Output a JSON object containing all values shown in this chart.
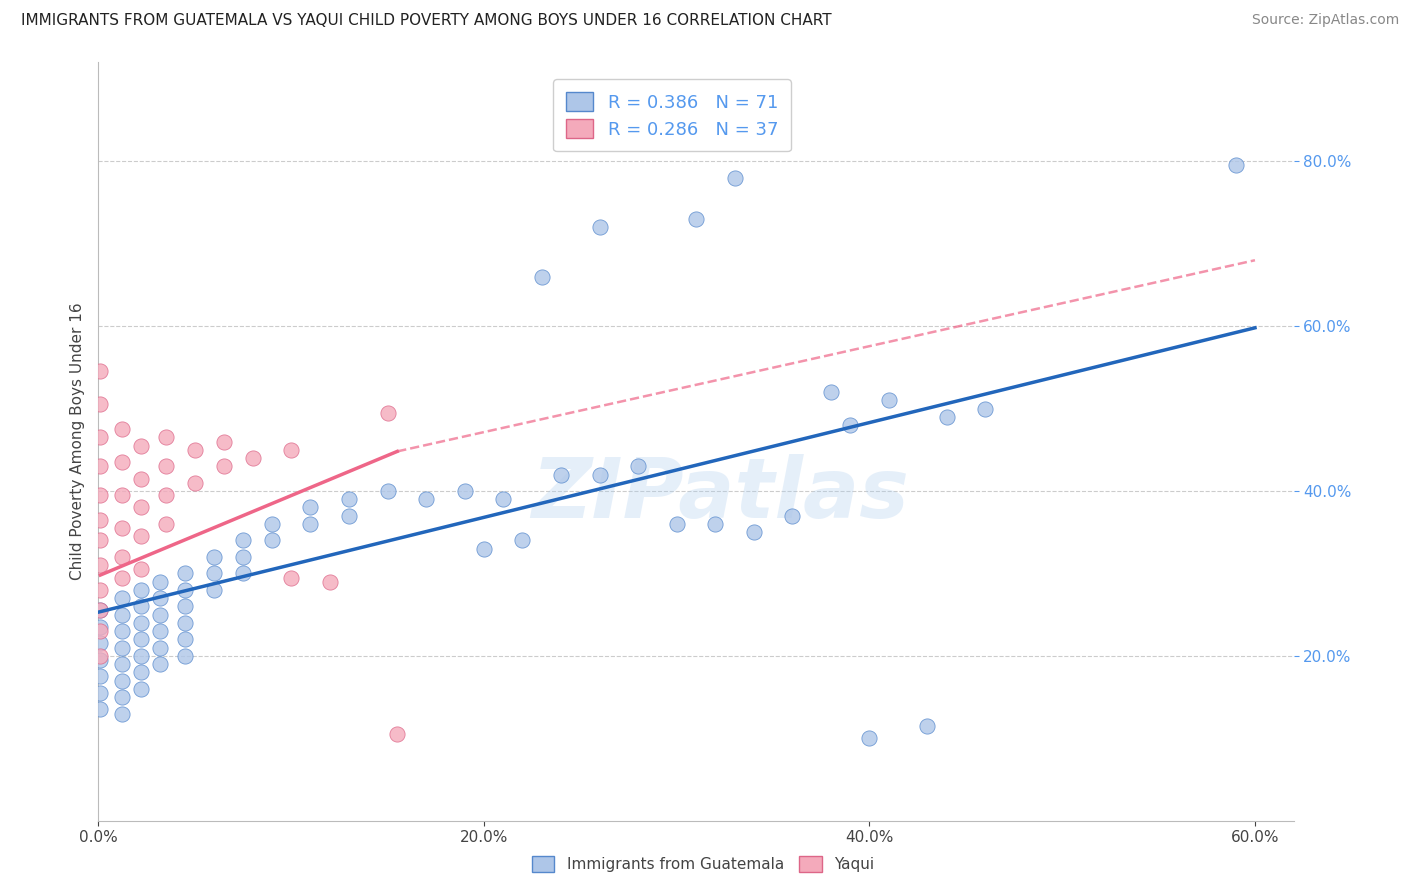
{
  "title": "IMMIGRANTS FROM GUATEMALA VS YAQUI CHILD POVERTY AMONG BOYS UNDER 16 CORRELATION CHART",
  "source": "Source: ZipAtlas.com",
  "ylabel": "Child Poverty Among Boys Under 16",
  "xlim": [
    0.0,
    0.62
  ],
  "ylim": [
    0.0,
    0.92
  ],
  "xtick_values": [
    0.0,
    0.2,
    0.4,
    0.6
  ],
  "ytick_values": [
    0.2,
    0.4,
    0.6,
    0.8
  ],
  "blue_R": 0.386,
  "blue_N": 71,
  "pink_R": 0.286,
  "pink_N": 37,
  "blue_color": "#AEC6E8",
  "pink_color": "#F4AABB",
  "blue_edge_color": "#5588CC",
  "pink_edge_color": "#DD6688",
  "blue_line_color": "#2266BB",
  "pink_line_color": "#EE6688",
  "tick_color": "#5599EE",
  "grid_color": "#CCCCCC",
  "watermark": "ZIPatlas",
  "background_color": "#FFFFFF",
  "blue_scatter": [
    [
      0.001,
      0.255
    ],
    [
      0.001,
      0.235
    ],
    [
      0.001,
      0.215
    ],
    [
      0.001,
      0.195
    ],
    [
      0.001,
      0.175
    ],
    [
      0.001,
      0.155
    ],
    [
      0.001,
      0.135
    ],
    [
      0.012,
      0.27
    ],
    [
      0.012,
      0.25
    ],
    [
      0.012,
      0.23
    ],
    [
      0.012,
      0.21
    ],
    [
      0.012,
      0.19
    ],
    [
      0.012,
      0.17
    ],
    [
      0.012,
      0.15
    ],
    [
      0.012,
      0.13
    ],
    [
      0.022,
      0.28
    ],
    [
      0.022,
      0.26
    ],
    [
      0.022,
      0.24
    ],
    [
      0.022,
      0.22
    ],
    [
      0.022,
      0.2
    ],
    [
      0.022,
      0.18
    ],
    [
      0.022,
      0.16
    ],
    [
      0.032,
      0.29
    ],
    [
      0.032,
      0.27
    ],
    [
      0.032,
      0.25
    ],
    [
      0.032,
      0.23
    ],
    [
      0.032,
      0.21
    ],
    [
      0.032,
      0.19
    ],
    [
      0.045,
      0.3
    ],
    [
      0.045,
      0.28
    ],
    [
      0.045,
      0.26
    ],
    [
      0.045,
      0.24
    ],
    [
      0.045,
      0.22
    ],
    [
      0.045,
      0.2
    ],
    [
      0.06,
      0.32
    ],
    [
      0.06,
      0.3
    ],
    [
      0.06,
      0.28
    ],
    [
      0.075,
      0.34
    ],
    [
      0.075,
      0.32
    ],
    [
      0.075,
      0.3
    ],
    [
      0.09,
      0.36
    ],
    [
      0.09,
      0.34
    ],
    [
      0.11,
      0.38
    ],
    [
      0.11,
      0.36
    ],
    [
      0.13,
      0.39
    ],
    [
      0.13,
      0.37
    ],
    [
      0.15,
      0.4
    ],
    [
      0.17,
      0.39
    ],
    [
      0.19,
      0.4
    ],
    [
      0.21,
      0.39
    ],
    [
      0.24,
      0.42
    ],
    [
      0.26,
      0.42
    ],
    [
      0.28,
      0.43
    ],
    [
      0.3,
      0.36
    ],
    [
      0.32,
      0.36
    ],
    [
      0.34,
      0.35
    ],
    [
      0.36,
      0.37
    ],
    [
      0.2,
      0.33
    ],
    [
      0.22,
      0.34
    ],
    [
      0.38,
      0.52
    ],
    [
      0.39,
      0.48
    ],
    [
      0.41,
      0.51
    ],
    [
      0.44,
      0.49
    ],
    [
      0.46,
      0.5
    ],
    [
      0.23,
      0.66
    ],
    [
      0.26,
      0.72
    ],
    [
      0.31,
      0.73
    ],
    [
      0.33,
      0.78
    ],
    [
      0.4,
      0.1
    ],
    [
      0.43,
      0.115
    ],
    [
      0.59,
      0.795
    ]
  ],
  "pink_scatter": [
    [
      0.001,
      0.545
    ],
    [
      0.001,
      0.505
    ],
    [
      0.001,
      0.465
    ],
    [
      0.001,
      0.43
    ],
    [
      0.001,
      0.395
    ],
    [
      0.001,
      0.365
    ],
    [
      0.001,
      0.34
    ],
    [
      0.001,
      0.31
    ],
    [
      0.001,
      0.28
    ],
    [
      0.001,
      0.255
    ],
    [
      0.001,
      0.23
    ],
    [
      0.001,
      0.2
    ],
    [
      0.012,
      0.475
    ],
    [
      0.012,
      0.435
    ],
    [
      0.012,
      0.395
    ],
    [
      0.012,
      0.355
    ],
    [
      0.012,
      0.32
    ],
    [
      0.012,
      0.295
    ],
    [
      0.022,
      0.455
    ],
    [
      0.022,
      0.415
    ],
    [
      0.022,
      0.38
    ],
    [
      0.022,
      0.345
    ],
    [
      0.022,
      0.305
    ],
    [
      0.035,
      0.465
    ],
    [
      0.035,
      0.43
    ],
    [
      0.035,
      0.395
    ],
    [
      0.035,
      0.36
    ],
    [
      0.05,
      0.45
    ],
    [
      0.05,
      0.41
    ],
    [
      0.065,
      0.46
    ],
    [
      0.065,
      0.43
    ],
    [
      0.08,
      0.44
    ],
    [
      0.1,
      0.45
    ],
    [
      0.1,
      0.295
    ],
    [
      0.12,
      0.29
    ],
    [
      0.15,
      0.495
    ],
    [
      0.155,
      0.105
    ]
  ],
  "blue_line": {
    "x0": 0.0,
    "x1": 0.6,
    "y0": 0.253,
    "y1": 0.598
  },
  "pink_solid_line": {
    "x0": 0.001,
    "x1": 0.155,
    "y0": 0.298,
    "y1": 0.448
  },
  "pink_dash_line": {
    "x0": 0.155,
    "x1": 0.6,
    "y0": 0.448,
    "y1": 0.68
  }
}
